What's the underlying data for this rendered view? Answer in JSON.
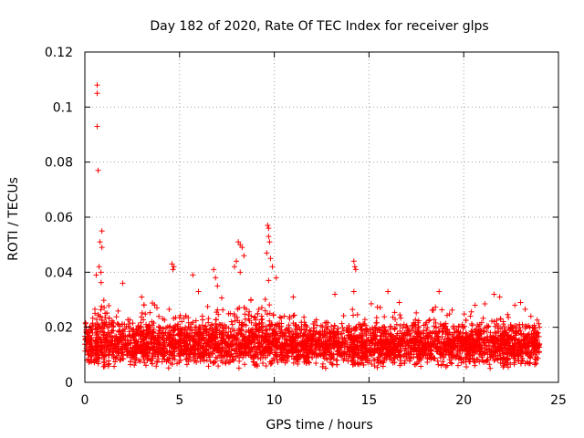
{
  "chart_data": {
    "type": "scatter",
    "title": "Day 182 of 2020, Rate Of TEC Index for receiver glps",
    "xlabel": "GPS time / hours",
    "ylabel": "ROTI / TECUs",
    "xlim": [
      0,
      25
    ],
    "ylim": [
      0,
      0.12
    ],
    "xticks": [
      0,
      5,
      10,
      15,
      20,
      25
    ],
    "xtick_labels": [
      "0",
      "5",
      "10",
      "15",
      "20",
      "25"
    ],
    "yticks": [
      0,
      0.02,
      0.04,
      0.06,
      0.08,
      0.1,
      0.12
    ],
    "ytick_labels": [
      "0",
      "0.02",
      "0.04",
      "0.06",
      "0.08",
      "0.1",
      "0.12"
    ],
    "grid": true,
    "marker": "+",
    "color": "#ff0000",
    "series": [
      {
        "name": "ROTI",
        "description": "dense band 0.005-0.025 TECU/s across 0-24 h with spikes",
        "spikes": [
          {
            "x": 0.65,
            "y": 0.108
          },
          {
            "x": 0.65,
            "y": 0.105
          },
          {
            "x": 0.65,
            "y": 0.093
          },
          {
            "x": 0.7,
            "y": 0.077
          },
          {
            "x": 0.9,
            "y": 0.055
          },
          {
            "x": 0.8,
            "y": 0.051
          },
          {
            "x": 0.9,
            "y": 0.049
          },
          {
            "x": 0.75,
            "y": 0.042
          },
          {
            "x": 0.85,
            "y": 0.04
          },
          {
            "x": 0.6,
            "y": 0.039
          },
          {
            "x": 2.0,
            "y": 0.036
          },
          {
            "x": 4.6,
            "y": 0.043
          },
          {
            "x": 4.7,
            "y": 0.042
          },
          {
            "x": 4.65,
            "y": 0.041
          },
          {
            "x": 5.7,
            "y": 0.039
          },
          {
            "x": 6.8,
            "y": 0.041
          },
          {
            "x": 6.9,
            "y": 0.038
          },
          {
            "x": 7.0,
            "y": 0.035
          },
          {
            "x": 7.9,
            "y": 0.042
          },
          {
            "x": 8.1,
            "y": 0.051
          },
          {
            "x": 8.2,
            "y": 0.05
          },
          {
            "x": 8.3,
            "y": 0.049
          },
          {
            "x": 8.4,
            "y": 0.046
          },
          {
            "x": 8.0,
            "y": 0.044
          },
          {
            "x": 8.2,
            "y": 0.04
          },
          {
            "x": 9.65,
            "y": 0.057
          },
          {
            "x": 9.7,
            "y": 0.056
          },
          {
            "x": 9.7,
            "y": 0.053
          },
          {
            "x": 9.75,
            "y": 0.051
          },
          {
            "x": 9.6,
            "y": 0.047
          },
          {
            "x": 9.8,
            "y": 0.045
          },
          {
            "x": 9.9,
            "y": 0.042
          },
          {
            "x": 10.1,
            "y": 0.038
          },
          {
            "x": 9.7,
            "y": 0.037
          },
          {
            "x": 14.2,
            "y": 0.044
          },
          {
            "x": 14.25,
            "y": 0.042
          },
          {
            "x": 14.3,
            "y": 0.041
          },
          {
            "x": 14.2,
            "y": 0.033
          },
          {
            "x": 16.0,
            "y": 0.033
          },
          {
            "x": 18.7,
            "y": 0.033
          },
          {
            "x": 21.6,
            "y": 0.032
          },
          {
            "x": 21.9,
            "y": 0.031
          },
          {
            "x": 20.6,
            "y": 0.028
          },
          {
            "x": 23.0,
            "y": 0.029
          },
          {
            "x": 13.2,
            "y": 0.032
          },
          {
            "x": 11.0,
            "y": 0.031
          },
          {
            "x": 3.0,
            "y": 0.031
          },
          {
            "x": 6.0,
            "y": 0.033
          },
          {
            "x": 16.6,
            "y": 0.029
          },
          {
            "x": 22.7,
            "y": 0.028
          }
        ]
      }
    ]
  }
}
